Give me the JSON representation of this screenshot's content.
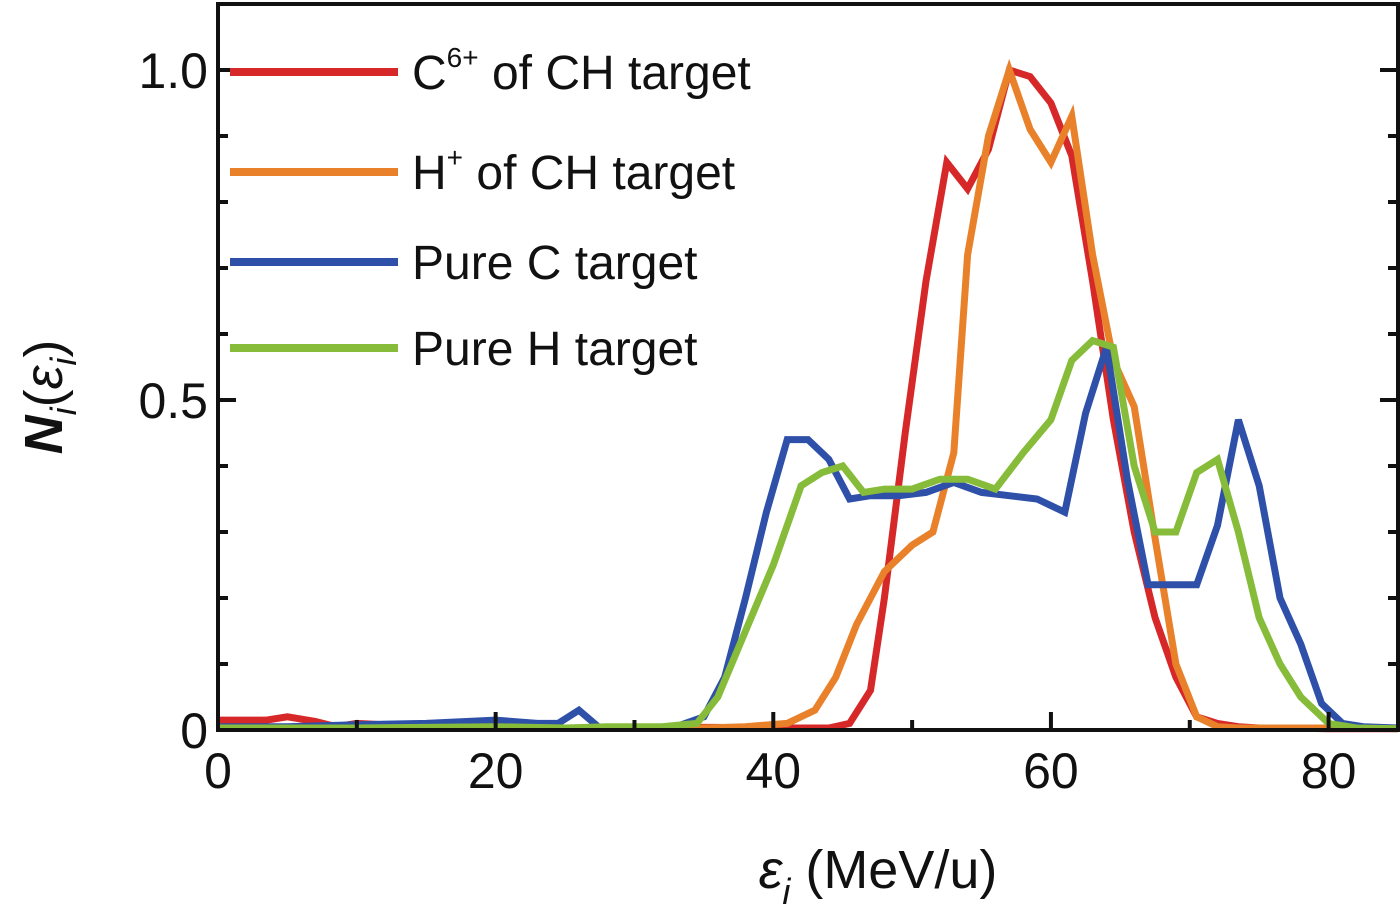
{
  "chart_data": {
    "type": "line",
    "xlabel": {
      "main": "ε",
      "sub": "i",
      "unit": " (MeV/u)"
    },
    "ylabel": {
      "main": "N",
      "sub": "i",
      "open": "(",
      "arg": "ε",
      "argsub": "i",
      "close": ")"
    },
    "xlim": [
      0,
      85
    ],
    "ylim": [
      0,
      1.1
    ],
    "xticks": [
      0,
      20,
      40,
      60,
      80
    ],
    "xtick_labels": [
      "0",
      "20",
      "40",
      "60",
      "80"
    ],
    "yticks": [
      0,
      0.5,
      1.0
    ],
    "ytick_labels": [
      "0",
      "0.5",
      "1.0"
    ],
    "legend_position": "top-left",
    "series": [
      {
        "name": "C of CH target",
        "name_base": "C",
        "name_sup": "6+",
        "name_rest": " of CH target",
        "color": "#d62828",
        "x": [
          0,
          3.5,
          5,
          7,
          8.5,
          10,
          12,
          14,
          16,
          18,
          20,
          22,
          24,
          26,
          28,
          30,
          32,
          34,
          36,
          38,
          40,
          42,
          44,
          45.5,
          47,
          48,
          49.5,
          51,
          52.5,
          54,
          55.5,
          57,
          58.5,
          60,
          61.5,
          63,
          64.5,
          66,
          67.5,
          69,
          70.5,
          72,
          73.5,
          75,
          77,
          80,
          85
        ],
        "y": [
          0.015,
          0.015,
          0.02,
          0.013,
          0.005,
          0.01,
          0.008,
          0.008,
          0.005,
          0.005,
          0.005,
          0.005,
          0.003,
          0.003,
          0.003,
          0.004,
          0.004,
          0.004,
          0.004,
          0.003,
          0.003,
          0.003,
          0.003,
          0.01,
          0.06,
          0.2,
          0.45,
          0.68,
          0.86,
          0.82,
          0.88,
          1.0,
          0.99,
          0.95,
          0.87,
          0.68,
          0.47,
          0.3,
          0.17,
          0.08,
          0.02,
          0.01,
          0.005,
          0.003,
          0.003,
          0.002,
          0.002
        ]
      },
      {
        "name": "H of CH target",
        "name_base": "H",
        "name_sup": "+",
        "name_rest": " of CH target",
        "color": "#e8812a",
        "x": [
          0,
          10,
          20,
          28,
          32,
          35,
          38,
          41,
          43,
          44.5,
          46,
          48,
          50,
          51.5,
          53,
          54,
          55.5,
          57,
          58.5,
          60,
          61.5,
          63,
          64.5,
          66,
          67.5,
          69,
          70.5,
          72,
          73.5,
          75,
          80,
          85
        ],
        "y": [
          0.003,
          0.003,
          0.003,
          0.003,
          0.003,
          0.003,
          0.005,
          0.01,
          0.03,
          0.08,
          0.16,
          0.24,
          0.28,
          0.3,
          0.42,
          0.72,
          0.9,
          1.0,
          0.91,
          0.86,
          0.93,
          0.72,
          0.56,
          0.49,
          0.29,
          0.1,
          0.02,
          0.005,
          0.003,
          0.003,
          0.003,
          0.003
        ]
      },
      {
        "name": "Pure C target",
        "name_base": "Pure C target",
        "name_sup": "",
        "name_rest": "",
        "color": "#2e50a8",
        "x": [
          0,
          5,
          10,
          15,
          20,
          23,
          24.5,
          26,
          27.5,
          29,
          31,
          33,
          35,
          36.5,
          38,
          39.5,
          41,
          42.5,
          44,
          45.5,
          47,
          49,
          51,
          53,
          55,
          57,
          59,
          61,
          62.5,
          64,
          65.5,
          67,
          69,
          70.5,
          72,
          73.5,
          75,
          76.5,
          78,
          79.5,
          81,
          82.5,
          85
        ],
        "y": [
          0.005,
          0.005,
          0.008,
          0.01,
          0.015,
          0.01,
          0.01,
          0.03,
          0.003,
          0.003,
          0.003,
          0.005,
          0.02,
          0.08,
          0.2,
          0.33,
          0.44,
          0.44,
          0.41,
          0.35,
          0.355,
          0.355,
          0.36,
          0.375,
          0.36,
          0.355,
          0.35,
          0.33,
          0.48,
          0.58,
          0.38,
          0.22,
          0.22,
          0.22,
          0.31,
          0.47,
          0.37,
          0.2,
          0.13,
          0.04,
          0.01,
          0.005,
          0.003
        ]
      },
      {
        "name": "Pure H target",
        "name_base": "Pure H target",
        "name_sup": "",
        "name_rest": "",
        "color": "#86bc3a",
        "x": [
          0,
          10,
          20,
          25,
          28,
          32,
          34.5,
          36,
          38,
          40,
          42,
          43.5,
          45,
          46.5,
          48,
          50,
          52,
          54,
          56,
          58,
          60,
          61.5,
          63,
          64.5,
          66,
          67.5,
          69,
          70.5,
          72,
          73.5,
          75,
          76.5,
          78,
          80,
          82,
          85
        ],
        "y": [
          0.003,
          0.003,
          0.005,
          0.003,
          0.005,
          0.005,
          0.01,
          0.05,
          0.15,
          0.25,
          0.37,
          0.39,
          0.4,
          0.36,
          0.365,
          0.365,
          0.38,
          0.38,
          0.365,
          0.42,
          0.47,
          0.56,
          0.59,
          0.58,
          0.4,
          0.3,
          0.3,
          0.39,
          0.41,
          0.3,
          0.17,
          0.1,
          0.05,
          0.01,
          0.003,
          0.002
        ]
      }
    ]
  }
}
